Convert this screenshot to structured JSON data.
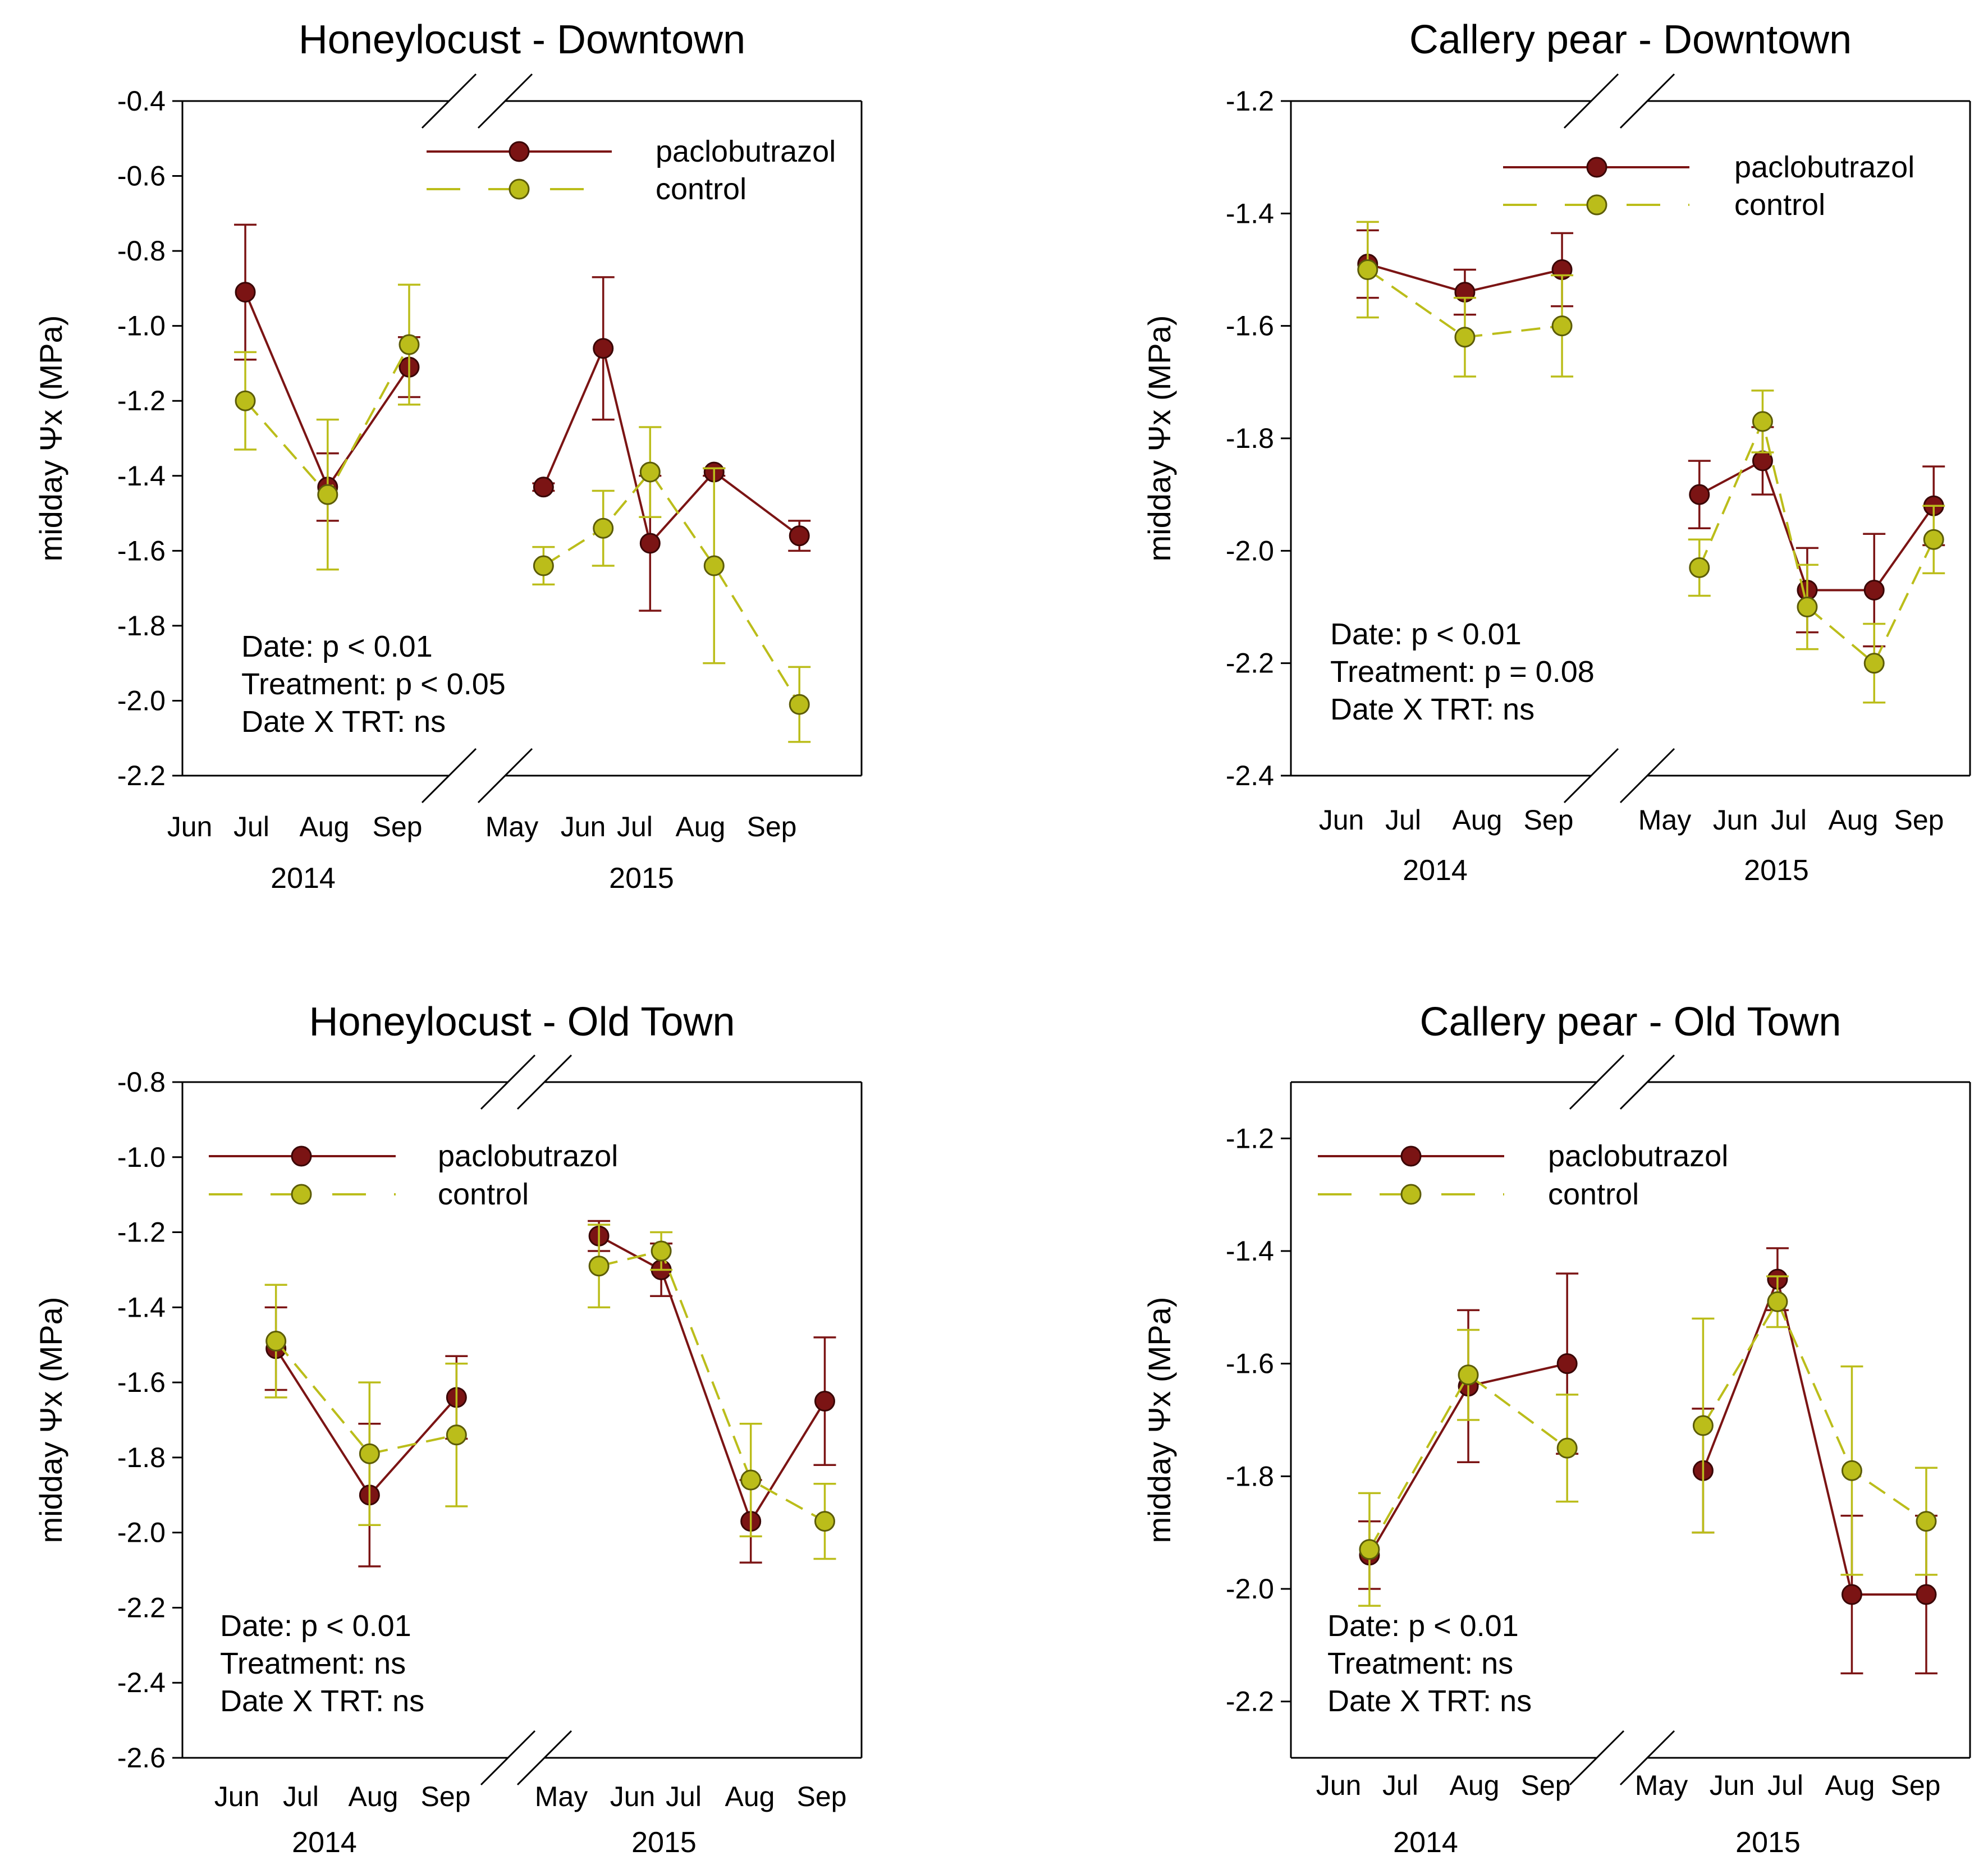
{
  "figure": {
    "colors": {
      "paclobutrazol": "#7B1414",
      "paclobutrazol_edge": "#3A0606",
      "control": "#BBBD1A",
      "control_edge": "#5C5C08",
      "axis": "#000000"
    }
  },
  "chart_data": [
    {
      "id": "honeylocust-downtown",
      "type": "line",
      "title": "Honeylocust  - Downtown",
      "ylabel": "midday Ψx (MPa)",
      "ylim": [
        -2.2,
        -0.4
      ],
      "yticks": [
        -0.4,
        -0.6,
        -0.8,
        -1.0,
        -1.2,
        -1.4,
        -1.6,
        -1.8,
        -2.0,
        -2.2
      ],
      "ytick_labels": [
        "-0.4",
        "-0.6",
        "-0.8",
        "-1.0",
        "-1.2",
        "-1.4",
        "-1.6",
        "-1.8",
        "-2.0",
        "-2.2"
      ],
      "months_2014": [
        "Jun",
        "Jul",
        "Aug",
        "Sep"
      ],
      "months_2015": [
        "May",
        "Jun",
        "Jul",
        "Aug",
        "Sep"
      ],
      "years": [
        "2014",
        "2015"
      ],
      "legend": {
        "labels": [
          "paclobutrazol",
          "control"
        ],
        "position": "top-right"
      },
      "stats": [
        "Date: p < 0.01",
        "Treatment: p < 0.05",
        "Date X TRT: ns"
      ],
      "series": [
        {
          "name": "paclobutrazol",
          "points_2014": [
            {
              "month": 1.55,
              "y": -0.91,
              "err": 0.18
            },
            {
              "month": 2.48,
              "y": -1.43,
              "err": 0.09
            },
            {
              "month": 3.4,
              "y": -1.11,
              "err": 0.08
            }
          ],
          "points_2015": [
            {
              "month": 1.3,
              "y": -1.43,
              "err": 0.01
            },
            {
              "month": 2.0,
              "y": -1.06,
              "err": 0.19
            },
            {
              "month": 2.55,
              "y": -1.58,
              "err": 0.18
            },
            {
              "month": 3.3,
              "y": -1.39,
              "err": 0.01
            },
            {
              "month": 4.3,
              "y": -1.56,
              "err": 0.04
            }
          ]
        },
        {
          "name": "control",
          "points_2014": [
            {
              "month": 1.55,
              "y": -1.2,
              "err": 0.13
            },
            {
              "month": 2.48,
              "y": -1.45,
              "err": 0.2
            },
            {
              "month": 3.4,
              "y": -1.05,
              "err": 0.16
            }
          ],
          "points_2015": [
            {
              "month": 1.3,
              "y": -1.64,
              "err": 0.05
            },
            {
              "month": 2.0,
              "y": -1.54,
              "err": 0.1
            },
            {
              "month": 2.55,
              "y": -1.39,
              "err": 0.12
            },
            {
              "month": 3.3,
              "y": -1.64,
              "err": 0.26
            },
            {
              "month": 4.3,
              "y": -2.01,
              "err": 0.1
            }
          ]
        }
      ]
    },
    {
      "id": "callery-pear-downtown",
      "type": "line",
      "title": "Callery pear - Downtown",
      "ylabel": "midday Ψx (MPa)",
      "ylim": [
        -2.4,
        -1.2
      ],
      "yticks": [
        -1.2,
        -1.4,
        -1.6,
        -1.8,
        -2.0,
        -2.2,
        -2.4
      ],
      "ytick_labels": [
        "-1.2",
        "-1.4",
        "-1.6",
        "-1.8",
        "-2.0",
        "-2.2",
        "-2.4"
      ],
      "months_2014": [
        "Jun",
        "Jul",
        "Aug",
        "Sep"
      ],
      "months_2015": [
        "May",
        "Jun",
        "Jul",
        "Aug",
        "Sep"
      ],
      "years": [
        "2014",
        "2015"
      ],
      "legend": {
        "labels": [
          "paclobutrazol",
          "control"
        ],
        "position": "top-right"
      },
      "stats": [
        "Date: p < 0.01",
        "Treatment: p = 0.08",
        "Date X TRT: ns"
      ],
      "series": [
        {
          "name": "paclobutrazol",
          "points_2014": [
            {
              "month": 1.9,
              "y": -1.49,
              "err": 0.06
            },
            {
              "month": 2.9,
              "y": -1.54,
              "err": 0.04
            },
            {
              "month": 3.9,
              "y": -1.5,
              "err": 0.065
            }
          ],
          "points_2015": [
            {
              "month": 1.45,
              "y": -1.9,
              "err": 0.06
            },
            {
              "month": 2.3,
              "y": -1.84,
              "err": 0.06
            },
            {
              "month": 2.9,
              "y": -2.07,
              "err": 0.075
            },
            {
              "month": 3.8,
              "y": -2.07,
              "err": 0.1
            },
            {
              "month": 4.6,
              "y": -1.92,
              "err": 0.07
            }
          ]
        },
        {
          "name": "control",
          "points_2014": [
            {
              "month": 1.9,
              "y": -1.5,
              "err": 0.085
            },
            {
              "month": 2.9,
              "y": -1.62,
              "err": 0.07
            },
            {
              "month": 3.9,
              "y": -1.6,
              "err": 0.09
            }
          ],
          "points_2015": [
            {
              "month": 1.45,
              "y": -2.03,
              "err": 0.05
            },
            {
              "month": 2.3,
              "y": -1.77,
              "err": 0.055
            },
            {
              "month": 2.9,
              "y": -2.1,
              "err": 0.075
            },
            {
              "month": 3.8,
              "y": -2.2,
              "err": 0.07
            },
            {
              "month": 4.6,
              "y": -1.98,
              "err": 0.06
            }
          ]
        }
      ]
    },
    {
      "id": "honeylocust-old-town",
      "type": "line",
      "title": "Honeylocust - Old Town",
      "ylabel": "midday Ψx (MPa)",
      "ylim": [
        -2.6,
        -0.8
      ],
      "yticks": [
        -0.8,
        -1.0,
        -1.2,
        -1.4,
        -1.6,
        -1.8,
        -2.0,
        -2.2,
        -2.4,
        -2.6
      ],
      "ytick_labels": [
        "-0.8",
        "-1.0",
        "-1.2",
        "-1.4",
        "-1.6",
        "-1.8",
        "-2.0",
        "-2.2",
        "-2.4",
        "-2.6"
      ],
      "months_2014": [
        "Jun",
        "Jul",
        "Aug",
        "Sep"
      ],
      "months_2015": [
        "May",
        "Jun",
        "Jul",
        "Aug",
        "Sep"
      ],
      "years": [
        "2014",
        "2015"
      ],
      "legend": {
        "labels": [
          "paclobutrazol",
          "control"
        ],
        "position": "top-left"
      },
      "stats": [
        "Date: p < 0.01",
        "Treatment: ns",
        "Date X TRT: ns"
      ],
      "series": [
        {
          "name": "paclobutrazol",
          "points_2014": [
            {
              "month": 1.82,
              "y": -1.51,
              "err": 0.11
            },
            {
              "month": 2.82,
              "y": -1.9,
              "err": 0.19
            },
            {
              "month": 3.75,
              "y": -1.64,
              "err": 0.11
            }
          ],
          "points_2015": [
            {
              "month": 1.6,
              "y": -1.21,
              "err": 0.04
            },
            {
              "month": 2.4,
              "y": -1.3,
              "err": 0.07
            },
            {
              "month": 3.55,
              "y": -1.97,
              "err": 0.11
            },
            {
              "month": 4.5,
              "y": -1.65,
              "err": 0.17
            }
          ]
        },
        {
          "name": "control",
          "points_2014": [
            {
              "month": 1.82,
              "y": -1.49,
              "err": 0.15
            },
            {
              "month": 2.82,
              "y": -1.79,
              "err": 0.19
            },
            {
              "month": 3.75,
              "y": -1.74,
              "err": 0.19
            }
          ],
          "points_2015": [
            {
              "month": 1.6,
              "y": -1.29,
              "err": 0.11
            },
            {
              "month": 2.4,
              "y": -1.25,
              "err": 0.05
            },
            {
              "month": 3.55,
              "y": -1.86,
              "err": 0.15
            },
            {
              "month": 4.5,
              "y": -1.97,
              "err": 0.1
            }
          ]
        }
      ]
    },
    {
      "id": "callery-pear-old-town",
      "type": "line",
      "title": "Callery pear - Old Town",
      "ylabel": "midday Ψx (MPa)",
      "ylim": [
        -2.3,
        -1.1
      ],
      "yticks": [
        -1.2,
        -1.4,
        -1.6,
        -1.8,
        -2.0,
        -2.2
      ],
      "ytick_labels": [
        "-1.2",
        "-1.4",
        "-1.6",
        "-1.8",
        "-2.0",
        "-2.2"
      ],
      "months_2014": [
        "Jun",
        "Jul",
        "Aug",
        "Sep"
      ],
      "months_2015": [
        "May",
        "Jun",
        "Jul",
        "Aug",
        "Sep"
      ],
      "years": [
        "2014",
        "2015"
      ],
      "legend": {
        "labels": [
          "paclobutrazol",
          "control"
        ],
        "position": "top-left"
      },
      "stats": [
        "Date: p < 0.01",
        "Treatment: ns",
        "Date X TRT: ns"
      ],
      "series": [
        {
          "name": "paclobutrazol",
          "points_2014": [
            {
              "month": 1.9,
              "y": -1.94,
              "err": 0.06
            },
            {
              "month": 2.9,
              "y": -1.64,
              "err": 0.135
            },
            {
              "month": 3.9,
              "y": -1.6,
              "err": 0.16
            }
          ],
          "points_2015": [
            {
              "month": 1.5,
              "y": -1.79,
              "err": 0.11
            },
            {
              "month": 2.5,
              "y": -1.45,
              "err": 0.055
            },
            {
              "month": 3.5,
              "y": -2.01,
              "err": 0.14
            },
            {
              "month": 4.5,
              "y": -2.01,
              "err": 0.14
            }
          ]
        },
        {
          "name": "control",
          "points_2014": [
            {
              "month": 1.9,
              "y": -1.93,
              "err": 0.1
            },
            {
              "month": 2.9,
              "y": -1.62,
              "err": 0.08
            },
            {
              "month": 3.9,
              "y": -1.75,
              "err": 0.095
            }
          ],
          "points_2015": [
            {
              "month": 1.5,
              "y": -1.71,
              "err": 0.19
            },
            {
              "month": 2.5,
              "y": -1.49,
              "err": 0.045
            },
            {
              "month": 3.5,
              "y": -1.79,
              "err": 0.185
            },
            {
              "month": 4.5,
              "y": -1.88,
              "err": 0.095
            }
          ]
        }
      ]
    }
  ]
}
